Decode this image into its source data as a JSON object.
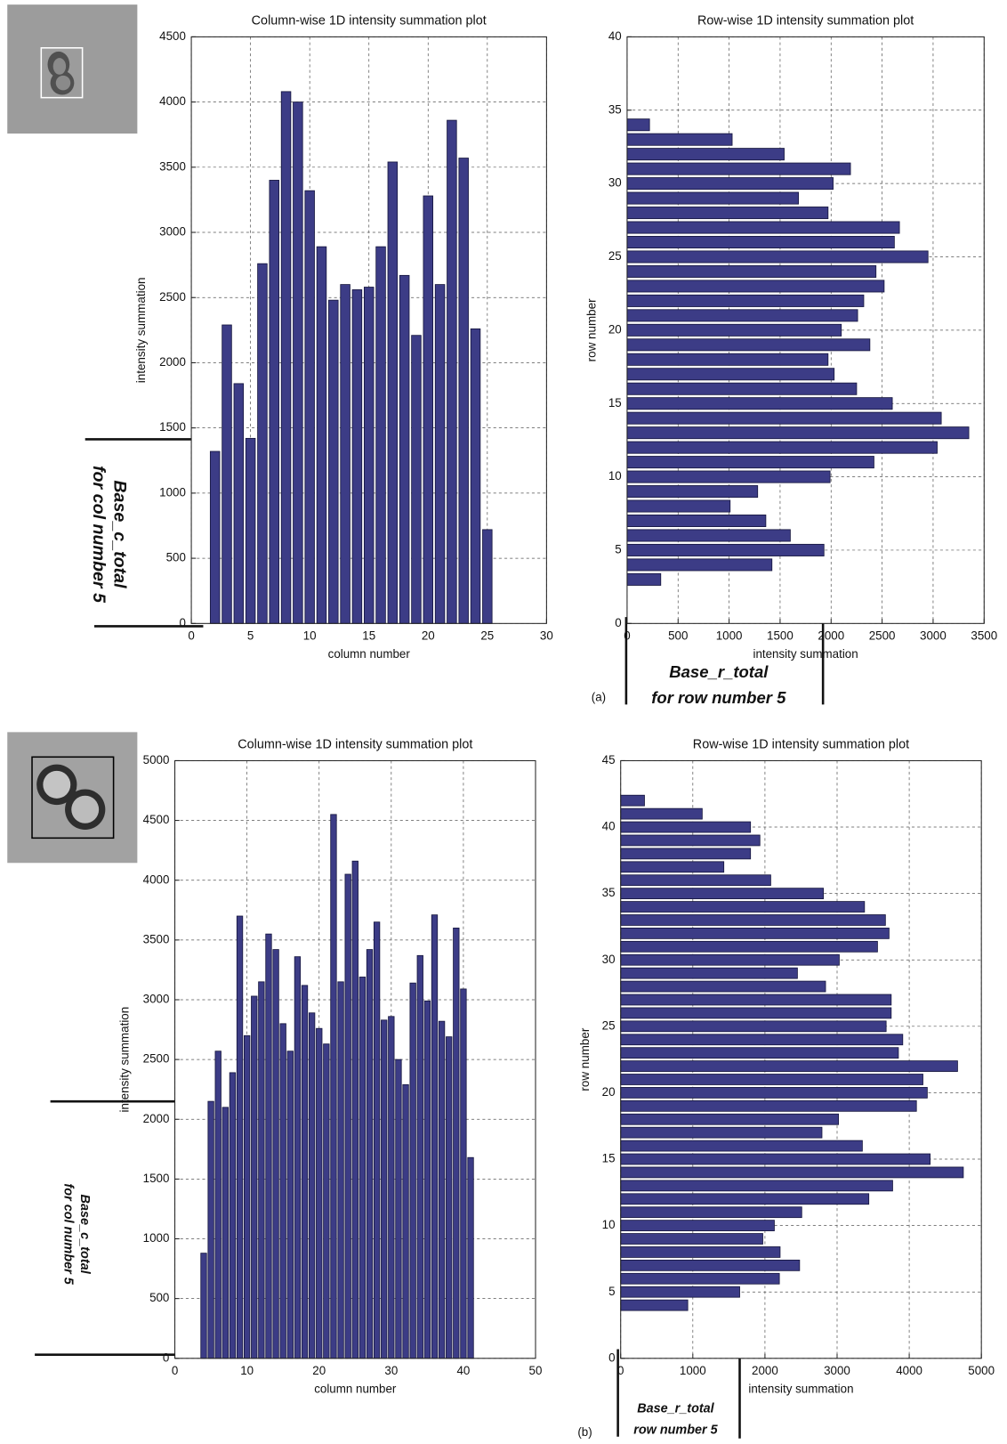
{
  "panel_labels": [
    "(a)",
    "(b)"
  ],
  "chart_data": [
    {
      "type": "bar",
      "title": "Column-wise 1D intensity summation plot",
      "x_label": "column number",
      "y_label": "intensity summation",
      "x": [
        2,
        3,
        4,
        5,
        6,
        7,
        8,
        9,
        10,
        11,
        12,
        13,
        14,
        15,
        16,
        17,
        18,
        19,
        20,
        21,
        22,
        23,
        24,
        25
      ],
      "values": [
        1320,
        2290,
        1840,
        1420,
        2760,
        3400,
        4080,
        4000,
        3320,
        2890,
        2480,
        2600,
        2560,
        2580,
        2890,
        3540,
        2670,
        2210,
        3280,
        2600,
        3860,
        3570,
        2260,
        720
      ],
      "color": "#3c3c86",
      "xlim": [
        0,
        30
      ],
      "ylim": [
        0,
        4500
      ],
      "xticks": [
        0,
        5,
        10,
        15,
        20,
        25,
        30
      ],
      "yticks": [
        0,
        500,
        1000,
        1500,
        2000,
        2500,
        3000,
        3500,
        4000,
        4500
      ],
      "grid": true,
      "annotation": [
        "Base_c_total",
        "for col number 5"
      ]
    },
    {
      "type": "barh",
      "title": "Row-wise 1D intensity summation plot",
      "x_label": "intensity summation",
      "y_label": "row number",
      "y": [
        3,
        4,
        5,
        6,
        7,
        8,
        9,
        10,
        11,
        12,
        13,
        14,
        15,
        16,
        17,
        18,
        19,
        20,
        21,
        22,
        23,
        24,
        25,
        26,
        27,
        28,
        29,
        30,
        31,
        32,
        33,
        34
      ],
      "values": [
        330,
        1420,
        1930,
        1600,
        1360,
        1010,
        1280,
        1990,
        2420,
        3040,
        3350,
        3080,
        2600,
        2250,
        2030,
        1970,
        2380,
        2100,
        2260,
        2320,
        2520,
        2440,
        2950,
        2620,
        2670,
        1970,
        1680,
        2020,
        2190,
        1540,
        1030,
        220
      ],
      "color": "#3c3c86",
      "xlim": [
        0,
        3500
      ],
      "ylim": [
        0,
        40
      ],
      "xticks": [
        0,
        500,
        1000,
        1500,
        2000,
        2500,
        3000,
        3500
      ],
      "yticks": [
        0,
        5,
        10,
        15,
        20,
        25,
        30,
        35,
        40
      ],
      "grid": true,
      "annotation": [
        "Base_r_total",
        "for row number 5"
      ]
    },
    {
      "type": "bar",
      "title": "Column-wise 1D intensity summation plot",
      "x_label": "column number",
      "y_label": "intensity summation",
      "x": [
        4,
        5,
        6,
        7,
        8,
        9,
        10,
        11,
        12,
        13,
        14,
        15,
        16,
        17,
        18,
        19,
        20,
        21,
        22,
        23,
        24,
        25,
        26,
        27,
        28,
        29,
        30,
        31,
        32,
        33,
        34,
        35,
        36,
        37,
        38,
        39,
        40,
        41
      ],
      "values": [
        880,
        2150,
        2570,
        2100,
        2390,
        3700,
        2700,
        3030,
        3150,
        3550,
        3420,
        2800,
        2570,
        3360,
        3120,
        2890,
        2760,
        2630,
        4550,
        3150,
        4050,
        4160,
        3190,
        3420,
        3650,
        2830,
        2860,
        2500,
        2290,
        3140,
        3370,
        2990,
        3710,
        2820,
        2690,
        3600,
        3090,
        1680
      ],
      "color": "#3c3c86",
      "xlim": [
        0,
        50
      ],
      "ylim": [
        0,
        5000
      ],
      "xticks": [
        0,
        10,
        20,
        30,
        40,
        50
      ],
      "yticks": [
        0,
        500,
        1000,
        1500,
        2000,
        2500,
        3000,
        3500,
        4000,
        4500,
        5000
      ],
      "grid": true,
      "annotation": [
        "Base_c_total",
        "for col number 5"
      ]
    },
    {
      "type": "barh",
      "title": "Row-wise 1D intensity summation plot",
      "x_label": "intensity summation",
      "y_label": "row number",
      "y": [
        4,
        5,
        6,
        7,
        8,
        9,
        10,
        11,
        12,
        13,
        14,
        15,
        16,
        17,
        18,
        19,
        20,
        21,
        22,
        23,
        24,
        25,
        26,
        27,
        28,
        29,
        30,
        31,
        32,
        33,
        34,
        35,
        36,
        37,
        38,
        39,
        40,
        41,
        42
      ],
      "values": [
        930,
        1650,
        2200,
        2480,
        2210,
        1970,
        2130,
        2510,
        3440,
        3770,
        4750,
        4290,
        3350,
        2790,
        3020,
        4100,
        4250,
        4190,
        4670,
        3850,
        3910,
        3680,
        3750,
        3750,
        2840,
        2450,
        3030,
        3560,
        3720,
        3670,
        3380,
        2810,
        2080,
        1430,
        1800,
        1930,
        1800,
        1130,
        330
      ],
      "color": "#3c3c86",
      "xlim": [
        0,
        5000
      ],
      "ylim": [
        0,
        45
      ],
      "xticks": [
        0,
        1000,
        2000,
        3000,
        4000,
        5000
      ],
      "yticks": [
        0,
        5,
        10,
        15,
        20,
        25,
        30,
        35,
        40,
        45
      ],
      "grid": true,
      "annotation": [
        "Base_r_total",
        "row number 5"
      ]
    }
  ]
}
